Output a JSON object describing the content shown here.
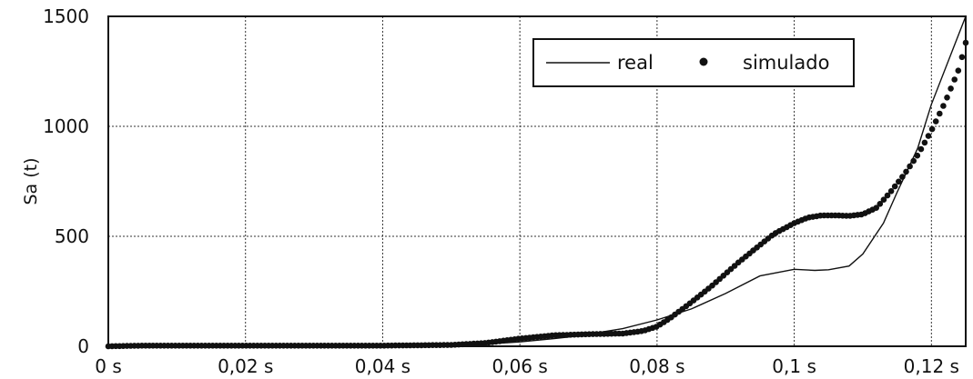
{
  "chart_data": {
    "type": "line",
    "title": "",
    "xlabel": "",
    "ylabel": "Sa (t)",
    "xlim": [
      0,
      0.125
    ],
    "ylim": [
      0,
      1500
    ],
    "x_ticks": [
      0,
      0.02,
      0.04,
      0.06,
      0.08,
      0.1,
      0.12
    ],
    "x_tick_labels": [
      "0 s",
      "0,02 s",
      "0,04 s",
      "0,06 s",
      "0,08 s",
      "0,1 s",
      "0,12 s"
    ],
    "y_ticks": [
      0,
      500,
      1000,
      1500
    ],
    "y_tick_labels": [
      "0",
      "500",
      "1000",
      "1500"
    ],
    "grid": true,
    "legend_position": "top-right",
    "colors": {
      "line": "#111111",
      "grid": "#333333",
      "background": "#ffffff"
    },
    "series": [
      {
        "name": "real",
        "style": "line",
        "x": [
          0,
          0.005,
          0.01,
          0.02,
          0.03,
          0.04,
          0.05,
          0.055,
          0.06,
          0.065,
          0.068,
          0.07,
          0.075,
          0.08,
          0.085,
          0.09,
          0.095,
          0.1,
          0.103,
          0.105,
          0.108,
          0.11,
          0.113,
          0.115,
          0.118,
          0.12,
          0.123,
          0.125
        ],
        "y": [
          0,
          0,
          2,
          2,
          2,
          2,
          3,
          10,
          20,
          35,
          45,
          55,
          80,
          120,
          170,
          240,
          320,
          350,
          345,
          348,
          365,
          420,
          560,
          700,
          900,
          1100,
          1340,
          1500
        ]
      },
      {
        "name": "simulado",
        "style": "markers",
        "x": [
          0,
          0.005,
          0.01,
          0.02,
          0.03,
          0.04,
          0.05,
          0.055,
          0.06,
          0.065,
          0.07,
          0.075,
          0.078,
          0.08,
          0.082,
          0.085,
          0.088,
          0.09,
          0.092,
          0.095,
          0.097,
          0.1,
          0.102,
          0.104,
          0.106,
          0.108,
          0.11,
          0.112,
          0.114,
          0.116,
          0.118,
          0.12,
          0.122,
          0.124,
          0.125
        ],
        "y": [
          0,
          3,
          3,
          3,
          3,
          3,
          6,
          15,
          35,
          50,
          55,
          58,
          70,
          90,
          130,
          200,
          275,
          330,
          385,
          460,
          510,
          560,
          585,
          595,
          595,
          593,
          600,
          630,
          700,
          780,
          870,
          980,
          1110,
          1260,
          1380
        ]
      }
    ]
  }
}
